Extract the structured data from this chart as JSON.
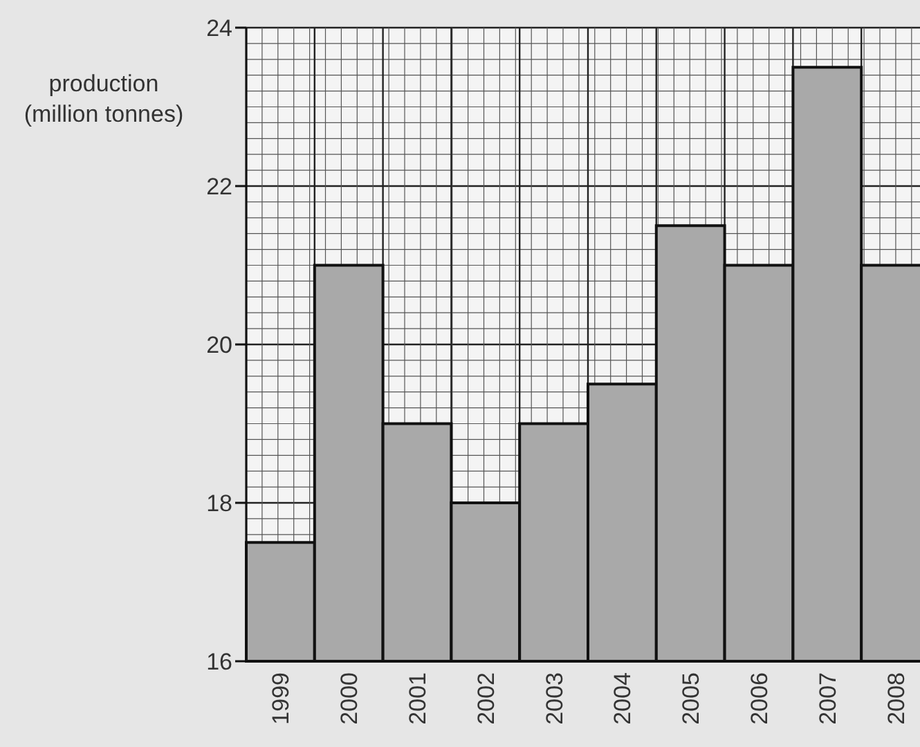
{
  "chart_data": {
    "type": "bar",
    "ylabel": "production (million tonnes)",
    "categories": [
      "1999",
      "2000",
      "2001",
      "2002",
      "2003",
      "2004",
      "2005",
      "2006",
      "2007",
      "2008"
    ],
    "values": [
      17.5,
      21,
      19,
      18,
      19,
      19.5,
      21.5,
      21,
      23.5,
      21
    ],
    "color": "#a9a9a9",
    "ylim": [
      16,
      24
    ],
    "yticks": [
      16,
      18,
      20,
      22,
      24
    ],
    "grid": true
  }
}
